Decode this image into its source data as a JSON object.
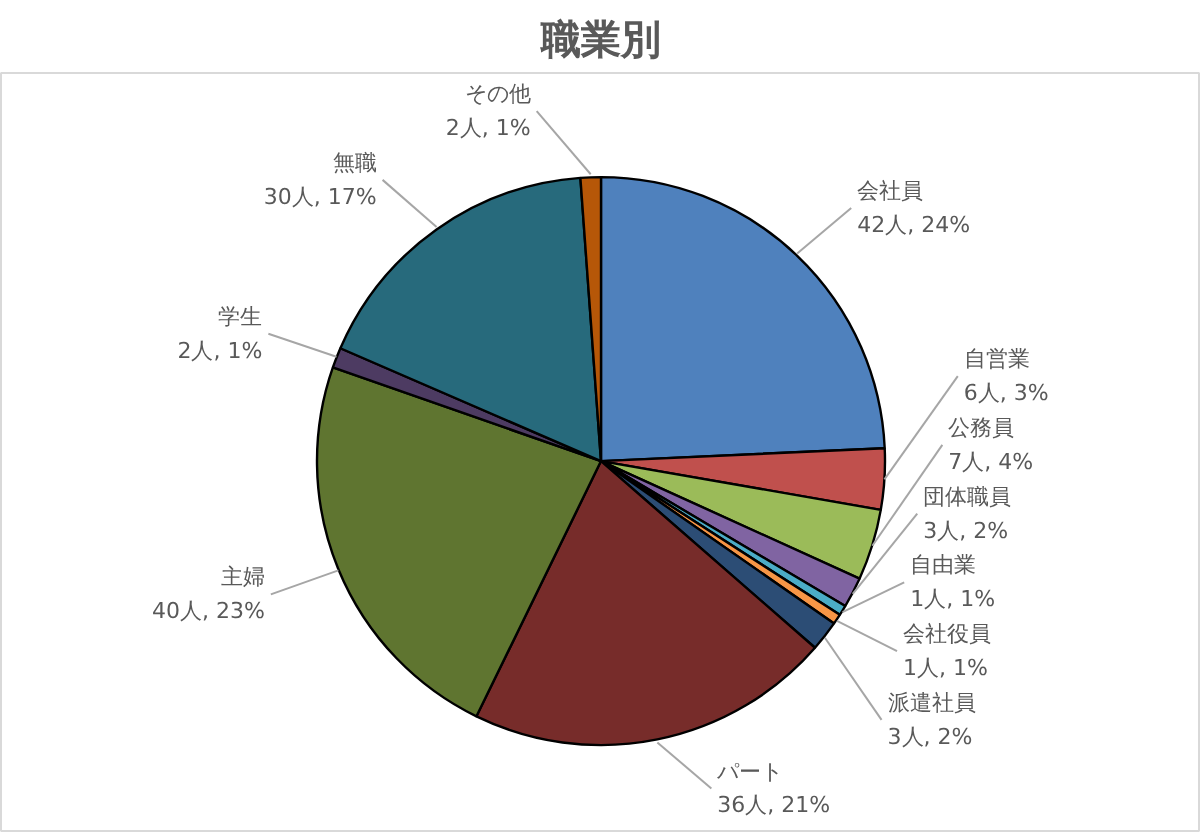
{
  "chart_data": {
    "type": "pie",
    "title": "職業別",
    "categories": [
      "会社員",
      "自営業",
      "公務員",
      "団体職員",
      "自由業",
      "会社役員",
      "派遣社員",
      "パート",
      "主婦",
      "学生",
      "無職",
      "その他"
    ],
    "values": [
      42,
      6,
      7,
      3,
      1,
      1,
      3,
      36,
      40,
      2,
      30,
      2
    ],
    "value_labels": [
      "42人, 24%",
      "6人, 3%",
      "7人, 4%",
      "3人, 2%",
      "1人, 1%",
      "1人, 1%",
      "3人, 2%",
      "36人, 21%",
      "40人, 23%",
      "2人, 1%",
      "30人, 17%",
      "2人, 1%"
    ],
    "colors": [
      "#4f81bd",
      "#c0504d",
      "#9bbb59",
      "#8064a2",
      "#4bacc6",
      "#f79646",
      "#2c4d75",
      "#772c2a",
      "#5f7530",
      "#4d3b62",
      "#276a7c",
      "#b65708"
    ]
  }
}
